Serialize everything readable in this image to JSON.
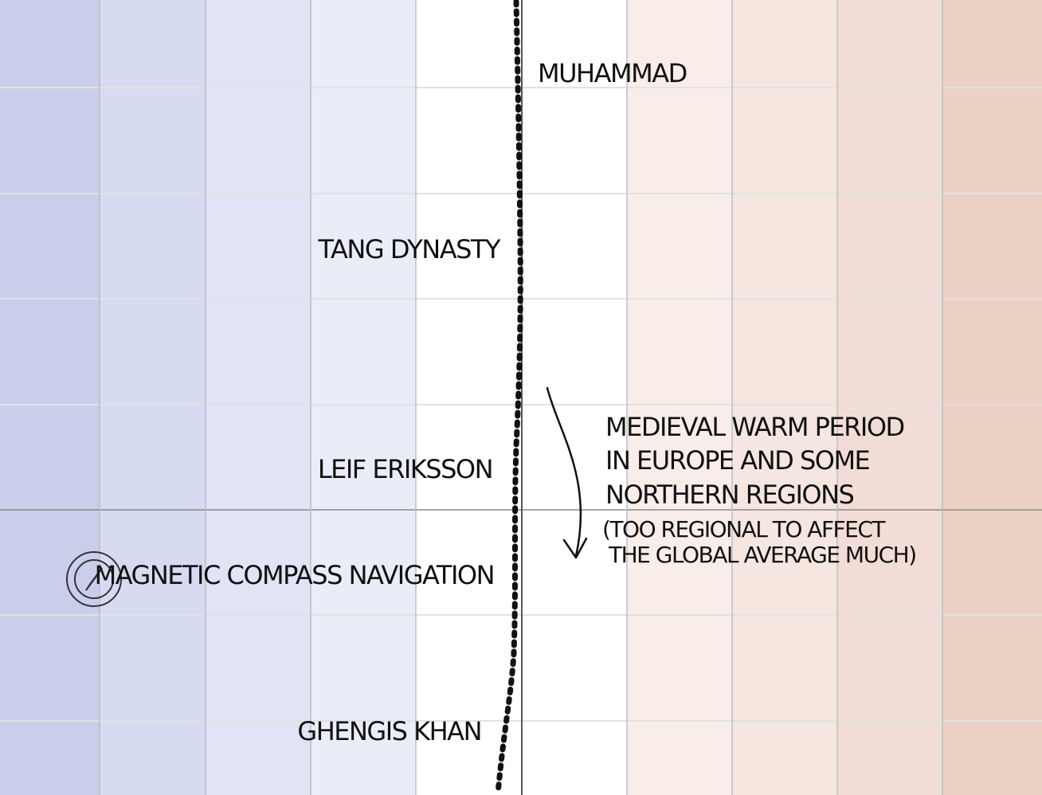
{
  "events": {
    "muhammad": "MUHAMMAD",
    "tang_dynasty": "TANG DYNASTY",
    "leif_eriksson": "LEIF ERIKSSON",
    "compass": "MAGNETIC COMPASS NAVIGATION",
    "ghengis_khan": "GHENGIS KHAN"
  },
  "annotation": {
    "lines": [
      "MEDIEVAL WARM PERIOD",
      "IN EUROPE AND SOME",
      "NORTHERN REGIONS"
    ],
    "note_lines": [
      "(TOO REGIONAL TO AFFECT",
      "THE GLOBAL AVERAGE MUCH)"
    ]
  }
}
